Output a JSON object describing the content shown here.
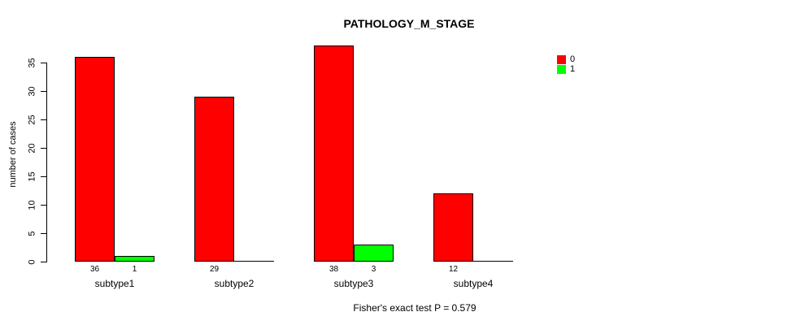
{
  "annotation": "Fisher's exact test P = 0.579",
  "chart_data": {
    "type": "bar",
    "title": "PATHOLOGY_M_STAGE",
    "xlabel": "",
    "ylabel": "number of cases",
    "categories": [
      "subtype1",
      "subtype2",
      "subtype3",
      "subtype4"
    ],
    "series": [
      {
        "name": "0",
        "color": "#FF0000",
        "values": [
          36,
          29,
          38,
          12
        ]
      },
      {
        "name": "1",
        "color": "#00FF00",
        "values": [
          1,
          0,
          3,
          0
        ]
      }
    ],
    "bar_count_labels": {
      "subtype1": [
        36,
        1
      ],
      "subtype2": [
        29,
        null
      ],
      "subtype3": [
        38,
        3
      ],
      "subtype4": [
        12,
        null
      ]
    },
    "ylim": [
      0,
      35
    ],
    "yticks": [
      0,
      5,
      10,
      15,
      20,
      25,
      30,
      35
    ],
    "grid": false,
    "legend_position": "top-right",
    "background": "#FFFFFF",
    "bar_border_color": "#000000"
  }
}
